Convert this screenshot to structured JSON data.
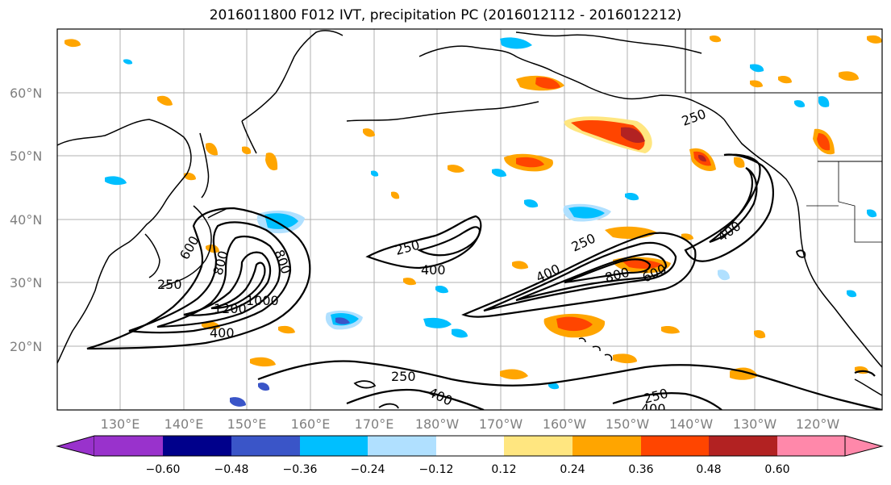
{
  "title": "2016011800 F012 IVT, precipitation PC (2016012112 - 2016012212)",
  "latitude_labels": [
    "60°N",
    "50°N",
    "40°N",
    "30°N",
    "20°N"
  ],
  "longitude_labels": [
    "130°E",
    "140°E",
    "150°E",
    "160°E",
    "170°E",
    "180°W",
    "170°W",
    "160°W",
    "150°W",
    "140°W",
    "130°W",
    "120°W"
  ],
  "ivt_contour_labels": [
    "250",
    "400",
    "800",
    "1200",
    "1000",
    "800",
    "600",
    "250",
    "400",
    "250",
    "400",
    "800",
    "600",
    "250",
    "400",
    "250",
    "400",
    "250",
    "400"
  ],
  "colorbar": {
    "ticks": [
      "−0.60",
      "−0.48",
      "−0.36",
      "−0.24",
      "−0.12",
      "0.12",
      "0.24",
      "0.36",
      "0.48",
      "0.60"
    ],
    "colors": [
      "#9932CC",
      "#00008B",
      "#3A55C8",
      "#00BFFF",
      "#B0E0FF",
      "#FFFFFF",
      "#FFE680",
      "#FFA500",
      "#FF4500",
      "#B22222",
      "#FF88AA"
    ]
  }
}
